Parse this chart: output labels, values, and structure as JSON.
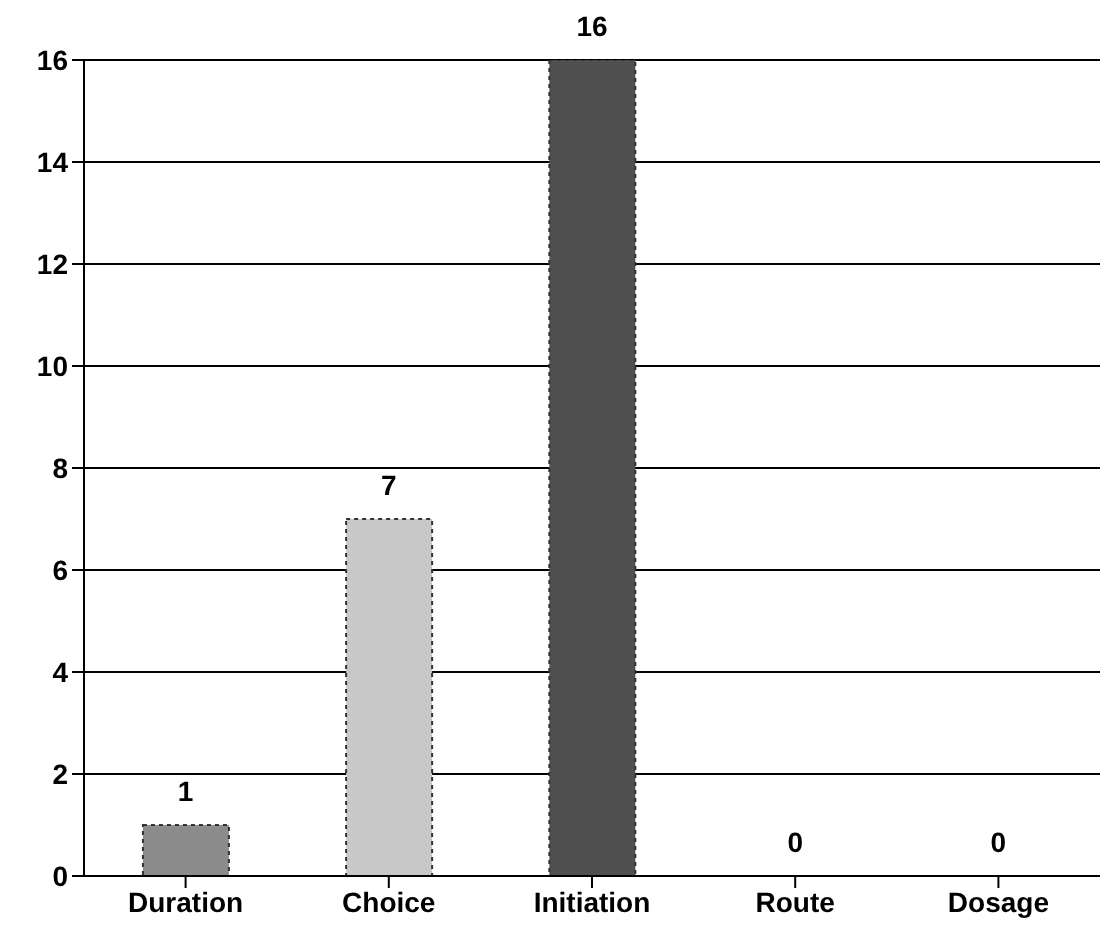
{
  "chart_data": {
    "type": "bar",
    "categories": [
      "Duration",
      "Choice",
      "Initiation",
      "Route",
      "Dosage"
    ],
    "values": [
      1,
      7,
      16,
      0,
      0
    ],
    "colors": [
      "#8c8c8c",
      "#c8c8c8",
      "#505050",
      "#808080",
      "#808080"
    ],
    "ylim": [
      0,
      16
    ],
    "yticks": [
      0,
      2,
      4,
      6,
      8,
      10,
      12,
      14,
      16
    ],
    "grid": "y",
    "data_labels": true
  }
}
